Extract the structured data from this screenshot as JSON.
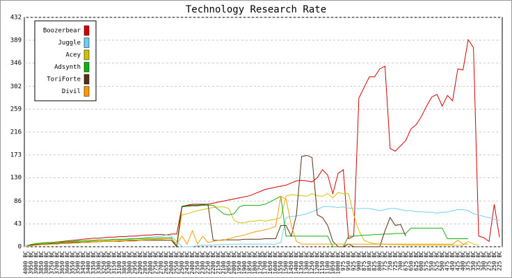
{
  "chart_data": {
    "type": "line",
    "title": "Technology Research Rate",
    "categories": [
      "4000 BC",
      "3950 BC",
      "3900 BC",
      "3850 BC",
      "3800 BC",
      "3750 BC",
      "3700 BC",
      "3650 BC",
      "3600 BC",
      "3550 BC",
      "3500 BC",
      "3450 BC",
      "3400 BC",
      "3350 BC",
      "3300 BC",
      "3250 BC",
      "3200 BC",
      "3150 BC",
      "3100 BC",
      "3050 BC",
      "3000 BC",
      "2950 BC",
      "2900 BC",
      "2850 BC",
      "2800 BC",
      "2750 BC",
      "2700 BC",
      "2650 BC",
      "2600 BC",
      "2550 BC",
      "2500 BC",
      "2450 BC",
      "2400 BC",
      "2350 BC",
      "2300 BC",
      "2250 BC",
      "2200 BC",
      "2150 BC",
      "2100 BC",
      "2050 BC",
      "2000 BC",
      "1950 BC",
      "1900 BC",
      "1850 BC",
      "1800 BC",
      "1750 BC",
      "1700 BC",
      "1650 BC",
      "1600 BC",
      "1550 BC",
      "1500 BC",
      "1450 BC",
      "1400 BC",
      "1350 BC",
      "1300 BC",
      "1250 BC",
      "1200 BC",
      "1150 BC",
      "1100 BC",
      "1050 BC",
      "1000 BC",
      "975 BC",
      "950 BC",
      "925 BC",
      "900 BC",
      "875 BC",
      "850 BC",
      "825 BC",
      "800 BC",
      "775 BC",
      "750 BC",
      "725 BC",
      "700 BC",
      "675 BC",
      "650 BC",
      "625 BC",
      "600 BC",
      "575 BC",
      "550 BC",
      "525 BC",
      "500 BC",
      "475 BC",
      "450 BC",
      "425 BC",
      "400 BC",
      "375 BC",
      "350 BC",
      "325 BC",
      "300 BC",
      "275 BC",
      "250 BC",
      "225 BC"
    ],
    "ylim": [
      0,
      432
    ],
    "yticks": [
      0,
      43,
      86,
      130,
      173,
      216,
      259,
      302,
      346,
      389,
      432
    ],
    "grid": true,
    "legend": "top-left",
    "series": [
      {
        "name": "Boozerbear",
        "color": "#d40000",
        "values": [
          0,
          3,
          5,
          6,
          7,
          8,
          9,
          10,
          11,
          12,
          13,
          14,
          15,
          16,
          16,
          17,
          18,
          18,
          19,
          19,
          20,
          20,
          21,
          22,
          22,
          23,
          23,
          22,
          24,
          24,
          75,
          77,
          78,
          78,
          79,
          80,
          82,
          84,
          86,
          88,
          90,
          92,
          94,
          96,
          100,
          104,
          108,
          110,
          112,
          114,
          116,
          120,
          124,
          125,
          124,
          122,
          130,
          145,
          135,
          100,
          138,
          145,
          15,
          20,
          280,
          300,
          320,
          320,
          335,
          340,
          185,
          180,
          190,
          200,
          222,
          230,
          245,
          265,
          282,
          287,
          265,
          285,
          275,
          335,
          333,
          390,
          375,
          20,
          17,
          10,
          80,
          18
        ]
      },
      {
        "name": "Juggle",
        "color": "#6ecff6",
        "values": [
          3,
          4,
          5,
          5,
          6,
          6,
          7,
          7,
          8,
          8,
          9,
          9,
          10,
          10,
          11,
          11,
          12,
          12,
          13,
          13,
          14,
          15,
          16,
          17,
          18,
          19,
          20,
          22,
          20,
          10,
          0,
          0,
          0,
          2,
          3,
          3,
          3,
          4,
          4,
          4,
          5,
          5,
          5,
          5,
          5,
          5,
          5,
          5,
          5,
          8,
          55,
          57,
          58,
          60,
          62,
          66,
          70,
          75,
          76,
          75,
          74,
          75,
          73,
          72,
          72,
          72,
          72,
          70,
          68,
          70,
          72,
          72,
          70,
          68,
          68,
          66,
          66,
          65,
          65,
          63,
          65,
          65,
          68,
          70,
          70,
          68,
          62,
          60,
          57,
          55,
          52,
          50
        ]
      },
      {
        "name": "Acey",
        "color": "#d4c000",
        "values": [
          0,
          3,
          5,
          6,
          7,
          7,
          8,
          8,
          9,
          9,
          10,
          10,
          10,
          11,
          11,
          11,
          12,
          12,
          12,
          12,
          13,
          13,
          13,
          14,
          14,
          14,
          15,
          15,
          15,
          0,
          60,
          62,
          65,
          68,
          70,
          72,
          74,
          75,
          75,
          72,
          50,
          45,
          45,
          48,
          48,
          50,
          48,
          50,
          52,
          55,
          95,
          98,
          97,
          96,
          95,
          100,
          96,
          95,
          100,
          92,
          102,
          100,
          100,
          60,
          30,
          12,
          8,
          6,
          5,
          5,
          4,
          4,
          4,
          3,
          3,
          3,
          3,
          3,
          3,
          3,
          3,
          3,
          3,
          3,
          3,
          10,
          5,
          3,
          null,
          null,
          null,
          null
        ]
      },
      {
        "name": "Adsynth",
        "color": "#10b010",
        "values": [
          0,
          4,
          6,
          7,
          8,
          8,
          9,
          9,
          10,
          10,
          11,
          11,
          12,
          12,
          13,
          13,
          13,
          14,
          14,
          14,
          15,
          15,
          15,
          16,
          16,
          16,
          17,
          17,
          17,
          0,
          75,
          76,
          77,
          77,
          78,
          78,
          78,
          70,
          62,
          60,
          62,
          75,
          78,
          78,
          78,
          78,
          80,
          85,
          90,
          95,
          20,
          20,
          20,
          20,
          20,
          20,
          20,
          20,
          20,
          0,
          0,
          0,
          20,
          20,
          21,
          22,
          22,
          23,
          23,
          24,
          24,
          25,
          25,
          25,
          35,
          35,
          35,
          35,
          35,
          35,
          35,
          15,
          15,
          15,
          15,
          15,
          null,
          null,
          null,
          null,
          null,
          null
        ]
      },
      {
        "name": "ToriForte",
        "color": "#5a2e10",
        "values": [
          0,
          3,
          4,
          5,
          5,
          6,
          6,
          7,
          7,
          8,
          8,
          8,
          9,
          9,
          9,
          10,
          10,
          10,
          10,
          11,
          11,
          11,
          12,
          12,
          12,
          12,
          12,
          12,
          12,
          0,
          76,
          78,
          80,
          80,
          80,
          80,
          12,
          12,
          13,
          13,
          13,
          13,
          14,
          14,
          14,
          14,
          15,
          15,
          15,
          40,
          40,
          20,
          60,
          170,
          172,
          168,
          60,
          55,
          40,
          10,
          0,
          0,
          5,
          0,
          0,
          0,
          0,
          0,
          0,
          30,
          55,
          40,
          42,
          20,
          null,
          null,
          null,
          null,
          null,
          null,
          null,
          null,
          null,
          null,
          null,
          null,
          null,
          null,
          null,
          null,
          null,
          null
        ]
      },
      {
        "name": "Divil",
        "color": "#ff9900",
        "values": [
          0,
          2,
          3,
          4,
          4,
          5,
          5,
          6,
          6,
          7,
          7,
          8,
          8,
          9,
          9,
          10,
          10,
          10,
          11,
          11,
          12,
          12,
          12,
          13,
          13,
          14,
          14,
          15,
          15,
          5,
          20,
          5,
          30,
          5,
          20,
          8,
          10,
          12,
          12,
          15,
          18,
          20,
          22,
          25,
          28,
          30,
          32,
          35,
          38,
          95,
          90,
          40,
          10,
          5,
          5,
          5,
          5,
          5,
          5,
          5,
          5,
          5,
          5,
          5,
          5,
          5,
          5,
          5,
          5,
          5,
          5,
          5,
          5,
          5,
          5,
          5,
          5,
          5,
          5,
          5,
          5,
          5,
          5,
          12,
          5,
          5,
          null,
          null,
          null,
          null,
          null,
          null
        ]
      }
    ]
  }
}
